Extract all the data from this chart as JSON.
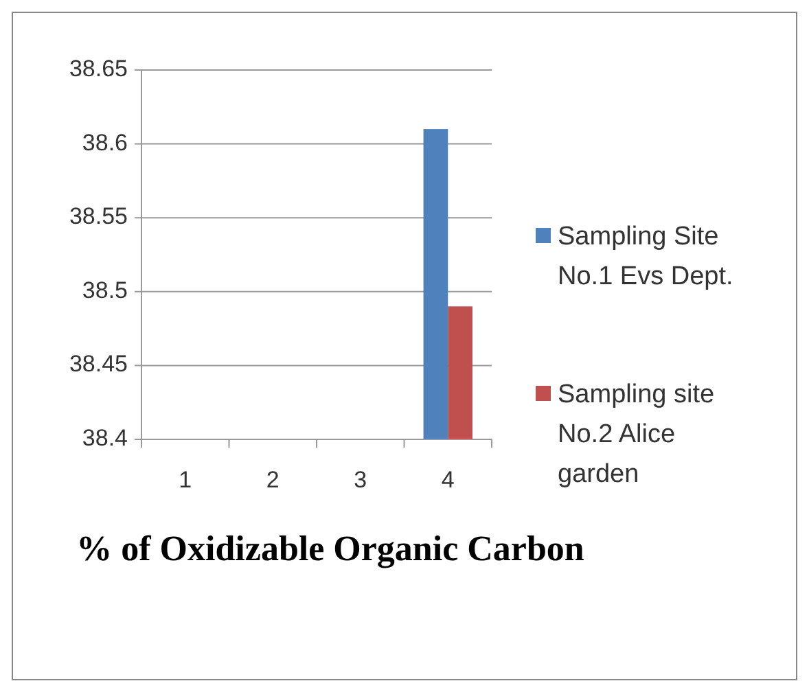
{
  "chart_data": {
    "type": "bar",
    "xlabel": "% of Oxidizable Organic Carbon",
    "categories": [
      "1",
      "2",
      "3",
      "4"
    ],
    "series": [
      {
        "name": "Sampling Site No.1 Evs Dept.",
        "color": "#4f81bd",
        "values": [
          null,
          null,
          null,
          38.61
        ]
      },
      {
        "name": "Sampling site No.2 Alice garden",
        "color": "#c0504d",
        "values": [
          null,
          null,
          null,
          38.49
        ]
      }
    ],
    "ylim": [
      38.4,
      38.65
    ],
    "yticks": [
      38.4,
      38.45,
      38.5,
      38.55,
      38.6,
      38.65
    ],
    "grid": "y",
    "legend": "right"
  }
}
